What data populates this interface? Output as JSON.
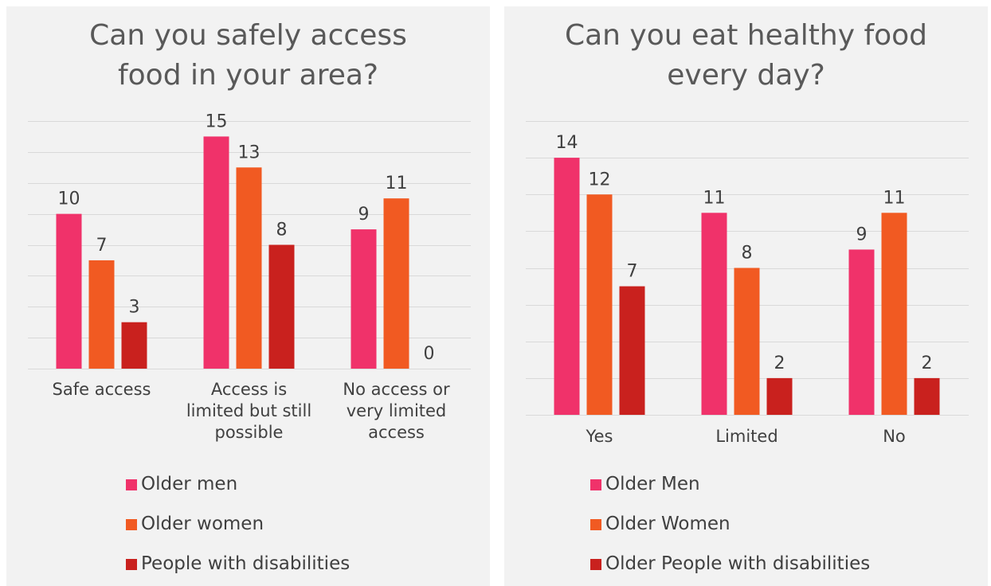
{
  "colors": {
    "series": [
      "#f0326a",
      "#f15a22",
      "#c9211e"
    ],
    "gridline": "#d9d9d9",
    "label": "#404040"
  },
  "chart_data": [
    {
      "type": "bar",
      "title_lines": [
        "Can you safely access",
        "food in your area?"
      ],
      "categories": [
        [
          "Safe access"
        ],
        [
          "Access is",
          "limited but still",
          "possible"
        ],
        [
          "No access or",
          "very limited",
          "access"
        ]
      ],
      "series": [
        {
          "name": "Older men",
          "values": [
            10,
            15,
            9
          ]
        },
        {
          "name": "Older women",
          "values": [
            7,
            13,
            11
          ]
        },
        {
          "name": "People with disabilities",
          "values": [
            3,
            8,
            0
          ]
        }
      ],
      "ylim": [
        0,
        16
      ],
      "grid": true,
      "legend_position": "bottom"
    },
    {
      "type": "bar",
      "title_lines": [
        "Can you eat healthy food",
        "every day?"
      ],
      "categories": [
        [
          "Yes"
        ],
        [
          "Limited"
        ],
        [
          "No"
        ]
      ],
      "series": [
        {
          "name": "Older Men",
          "values": [
            14,
            11,
            9
          ]
        },
        {
          "name": "Older Women",
          "values": [
            12,
            8,
            11
          ]
        },
        {
          "name": "Older People with disabilities",
          "values": [
            7,
            2,
            2
          ]
        }
      ],
      "ylim": [
        0,
        16
      ],
      "grid": true,
      "legend_position": "bottom"
    }
  ]
}
